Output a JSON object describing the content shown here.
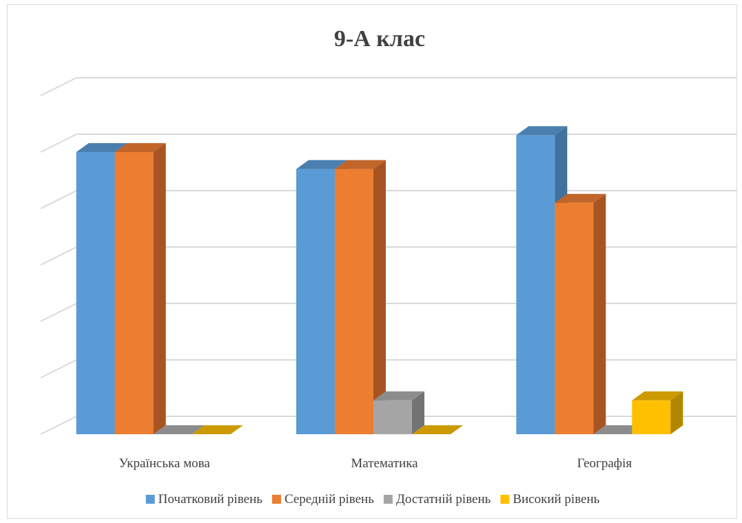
{
  "chart_data": {
    "type": "bar",
    "title": "9-А клас",
    "categories": [
      "Українська мова",
      "Математика",
      "Географія"
    ],
    "series": [
      {
        "name": "Початковий рівень",
        "values": [
          5.0,
          4.7,
          5.3
        ],
        "color": "#5B9BD5",
        "side_color": "#41719C",
        "top_color": "#4A7FB0"
      },
      {
        "name": "Середній рівень",
        "values": [
          5.0,
          4.7,
          4.1
        ],
        "color": "#ED7D31",
        "side_color": "#A65522",
        "top_color": "#C2652A"
      },
      {
        "name": "Достатній рівень",
        "values": [
          0,
          0.6,
          0
        ],
        "color": "#A5A5A5",
        "side_color": "#737373",
        "top_color": "#8C8C8C"
      },
      {
        "name": "Високий рівень",
        "values": [
          0,
          0,
          0.6
        ],
        "color": "#FFC000",
        "side_color": "#B38600",
        "top_color": "#CC9A00"
      }
    ],
    "ylim": [
      0,
      6
    ],
    "grid": true,
    "legend_position": "bottom"
  }
}
